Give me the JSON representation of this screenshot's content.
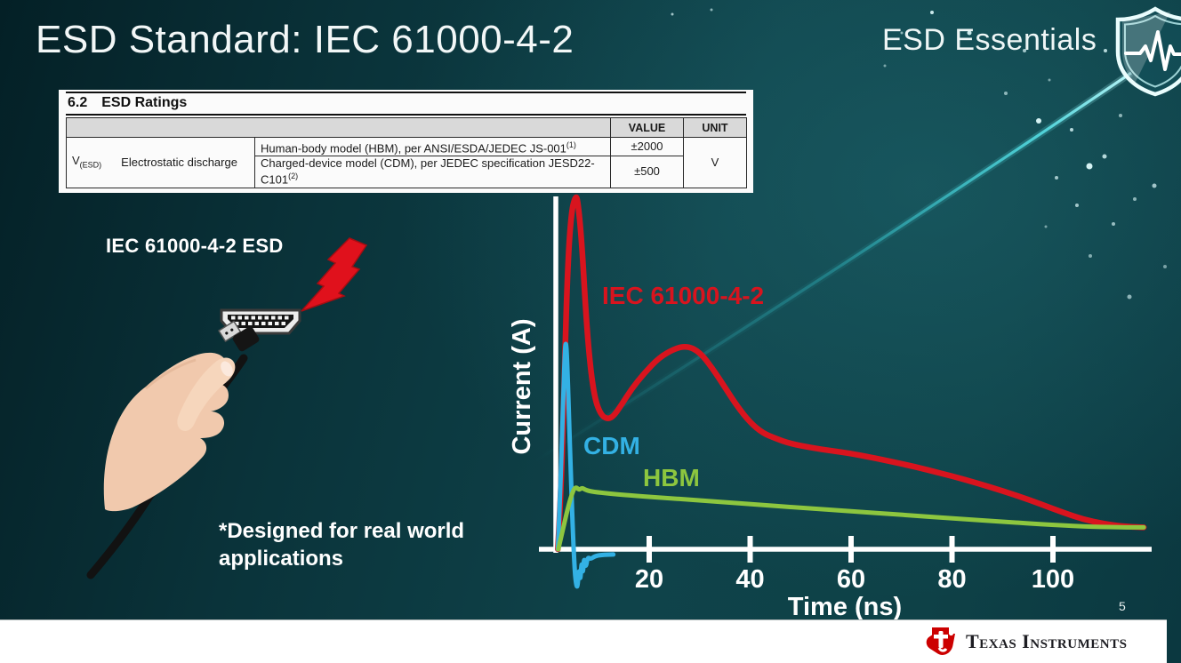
{
  "slide": {
    "title": "ESD Standard: IEC 61000-4-2",
    "program": "ESD Essentials",
    "page_number": "5",
    "illustration_label": "IEC 61000-4-2 ESD",
    "footnote_line1": "*Designed for real world",
    "footnote_line2": "applications"
  },
  "table": {
    "section_number": "6.2",
    "section_title": "ESD Ratings",
    "col_value": "VALUE",
    "col_unit": "UNIT",
    "symbol": "V",
    "symbol_sub": "(ESD)",
    "parameter": "Electrostatic discharge",
    "rows": [
      {
        "desc": "Human-body model (HBM), per ANSI/ESDA/JEDEC JS-001",
        "sup": "(1)",
        "value": "±2000"
      },
      {
        "desc": "Charged-device model (CDM), per JEDEC specification JESD22-C101",
        "sup": "(2)",
        "value": "±500"
      }
    ],
    "unit": "V"
  },
  "footer": {
    "brand": "Texas Instruments"
  },
  "colors": {
    "background_teal": "#0e4046",
    "accent_cyan": "#3adde6",
    "iec_red": "#d8141e",
    "cdm_blue": "#33b1e4",
    "hbm_green": "#8dc63f",
    "axis_white": "#ffffff",
    "ti_red": "#cc0000"
  },
  "chart_data": {
    "type": "line",
    "title": "",
    "xlabel": "Time (ns)",
    "ylabel": "Current (A)",
    "x_ticks": [
      20,
      40,
      60,
      80,
      100
    ],
    "xlim": [
      0,
      119
    ],
    "ylim": [
      -0.12,
      1.05
    ],
    "y_axis_values_shown": false,
    "y_units_note": "relative amplitude, IEC peak = 1.0",
    "grid": false,
    "legend_position": "inline-labels",
    "series": [
      {
        "name": "IEC 61000-4-2",
        "color": "#d8141e",
        "points": [
          [
            1.9,
            0
          ],
          [
            2.6,
            0.18
          ],
          [
            3.2,
            0.52
          ],
          [
            3.9,
            0.82
          ],
          [
            4.6,
            0.96
          ],
          [
            5.3,
            1.0
          ],
          [
            5.8,
            1.0
          ],
          [
            6.6,
            0.88
          ],
          [
            7.4,
            0.68
          ],
          [
            8.3,
            0.52
          ],
          [
            9.2,
            0.43
          ],
          [
            10.3,
            0.385
          ],
          [
            11.5,
            0.37
          ],
          [
            12.8,
            0.375
          ],
          [
            14.5,
            0.41
          ],
          [
            16.5,
            0.455
          ],
          [
            19,
            0.5
          ],
          [
            22,
            0.545
          ],
          [
            25,
            0.57
          ],
          [
            27.5,
            0.578
          ],
          [
            30,
            0.56
          ],
          [
            32.5,
            0.515
          ],
          [
            35,
            0.46
          ],
          [
            37.5,
            0.405
          ],
          [
            40,
            0.36
          ],
          [
            42.5,
            0.33
          ],
          [
            45,
            0.315
          ],
          [
            48,
            0.3
          ],
          [
            52,
            0.289
          ],
          [
            56,
            0.28
          ],
          [
            60,
            0.272
          ],
          [
            65,
            0.258
          ],
          [
            70,
            0.243
          ],
          [
            75,
            0.226
          ],
          [
            80,
            0.208
          ],
          [
            85,
            0.188
          ],
          [
            90,
            0.166
          ],
          [
            95,
            0.142
          ],
          [
            100,
            0.115
          ],
          [
            104,
            0.094
          ],
          [
            108,
            0.078
          ],
          [
            112,
            0.068
          ],
          [
            115,
            0.064
          ],
          [
            118,
            0.062
          ]
        ]
      },
      {
        "name": "CDM",
        "color": "#33b1e4",
        "points": [
          [
            1.9,
            0
          ],
          [
            2.4,
            0.17
          ],
          [
            2.9,
            0.4
          ],
          [
            3.3,
            0.57
          ],
          [
            3.5,
            0.59
          ],
          [
            3.7,
            0.55
          ],
          [
            4.1,
            0.38
          ],
          [
            4.5,
            0.2
          ],
          [
            4.9,
            0.04
          ],
          [
            5.2,
            -0.05
          ],
          [
            5.5,
            -0.1
          ],
          [
            5.8,
            -0.11
          ],
          [
            6.1,
            -0.05
          ],
          [
            6.35,
            -0.095
          ],
          [
            6.6,
            -0.03
          ],
          [
            6.85,
            -0.075
          ],
          [
            7.1,
            -0.02
          ],
          [
            7.4,
            -0.055
          ],
          [
            7.8,
            -0.022
          ],
          [
            8.4,
            -0.028
          ],
          [
            9.2,
            -0.02
          ],
          [
            10.5,
            -0.016
          ],
          [
            12.9,
            -0.015
          ]
        ]
      },
      {
        "name": "HBM",
        "color": "#8dc63f",
        "points": [
          [
            2,
            0
          ],
          [
            2.8,
            0.05
          ],
          [
            3.6,
            0.1
          ],
          [
            4.4,
            0.145
          ],
          [
            5.1,
            0.172
          ],
          [
            5.6,
            0.176
          ],
          [
            6.1,
            0.168
          ],
          [
            6.7,
            0.175
          ],
          [
            7.4,
            0.168
          ],
          [
            9,
            0.163
          ],
          [
            12,
            0.158
          ],
          [
            16,
            0.153
          ],
          [
            22,
            0.147
          ],
          [
            30,
            0.139
          ],
          [
            40,
            0.128
          ],
          [
            50,
            0.118
          ],
          [
            60,
            0.108
          ],
          [
            70,
            0.098
          ],
          [
            80,
            0.088
          ],
          [
            90,
            0.078
          ],
          [
            100,
            0.069
          ],
          [
            108,
            0.064
          ],
          [
            114,
            0.062
          ],
          [
            118,
            0.062
          ]
        ]
      }
    ]
  }
}
